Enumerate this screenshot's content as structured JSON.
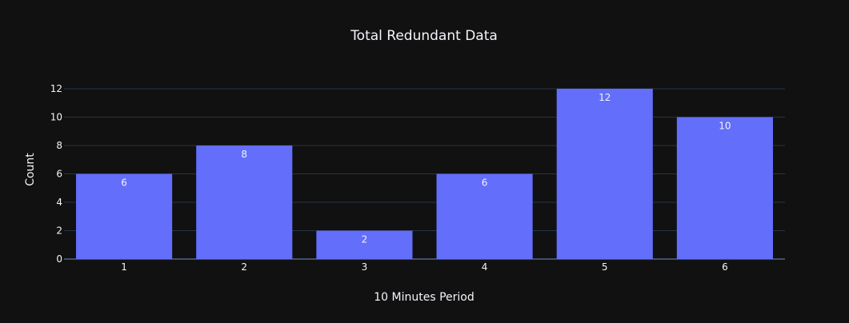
{
  "chart_data": {
    "type": "bar",
    "title": "Total Redundant Data",
    "xlabel": "10 Minutes Period",
    "ylabel": "Count",
    "categories": [
      "1",
      "2",
      "3",
      "4",
      "5",
      "6"
    ],
    "values": [
      6,
      8,
      2,
      6,
      12,
      10
    ],
    "data_labels": [
      "6",
      "8",
      "2",
      "6",
      "12",
      "10"
    ],
    "yticks": [
      0,
      2,
      4,
      6,
      8,
      10,
      12
    ],
    "ylim": [
      0,
      12
    ],
    "grid": true,
    "colors": {
      "background": "#111111",
      "bar": "#636efa",
      "grid": "#283442",
      "text": "#f2f5fa"
    }
  }
}
